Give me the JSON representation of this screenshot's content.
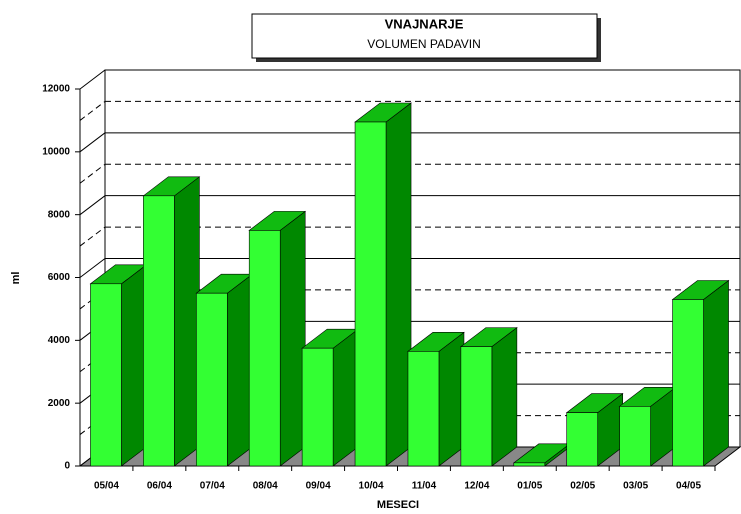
{
  "chart_data": {
    "type": "bar3d",
    "title": "VNAJNARJE",
    "subtitle": "VOLUMEN PADAVIN",
    "x_label": "MESECI",
    "y_label": "ml",
    "categories": [
      "05/04",
      "06/04",
      "07/04",
      "08/04",
      "09/04",
      "10/04",
      "11/04",
      "12/04",
      "01/05",
      "02/05",
      "03/05",
      "04/05"
    ],
    "values": [
      5800,
      8600,
      5500,
      7500,
      3750,
      10950,
      3650,
      3800,
      100,
      1700,
      1900,
      5300
    ],
    "color": "#33ff33",
    "ylim": [
      0,
      12000
    ],
    "yticks": [
      0,
      2000,
      4000,
      6000,
      8000,
      10000,
      12000
    ],
    "grid": true
  }
}
